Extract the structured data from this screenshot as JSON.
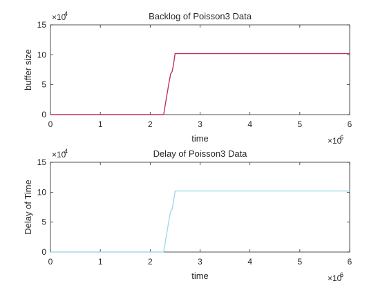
{
  "chart_data": [
    {
      "type": "line",
      "title": "Backlog of Poisson3 Data",
      "xlabel": "time",
      "ylabel": "buffer size",
      "xlim": [
        0,
        6
      ],
      "ylim": [
        0,
        15
      ],
      "x_exponent_label": "×10",
      "x_exponent": "6",
      "y_exponent_label": "×10",
      "y_exponent": "4",
      "xticks": [
        "0",
        "1",
        "2",
        "3",
        "4",
        "5",
        "6"
      ],
      "yticks": [
        "0",
        "5",
        "10",
        "15"
      ],
      "grid": false,
      "line_color": "#c0306a",
      "series": [
        {
          "x": [
            0,
            2.27,
            2.33,
            2.38,
            2.41,
            2.44,
            2.46,
            2.5,
            6
          ],
          "values": [
            0,
            0,
            3.0,
            5.5,
            6.8,
            7.2,
            8.0,
            10.2,
            10.2
          ]
        }
      ]
    },
    {
      "type": "line",
      "title": "Delay of Poisson3 Data",
      "xlabel": "time",
      "ylabel": "Delay of Time",
      "xlim": [
        0,
        6
      ],
      "ylim": [
        0,
        15
      ],
      "x_exponent_label": "×10",
      "x_exponent": "6",
      "y_exponent_label": "×10",
      "y_exponent": "4",
      "xticks": [
        "0",
        "1",
        "2",
        "3",
        "4",
        "5",
        "6"
      ],
      "yticks": [
        "0",
        "5",
        "10",
        "15"
      ],
      "grid": false,
      "line_color": "#9fd8ee",
      "series": [
        {
          "x": [
            0,
            2.27,
            2.33,
            2.38,
            2.41,
            2.44,
            2.46,
            2.5,
            6
          ],
          "values": [
            0,
            0,
            3.0,
            5.5,
            6.8,
            7.2,
            8.0,
            10.2,
            10.2
          ]
        }
      ]
    }
  ]
}
